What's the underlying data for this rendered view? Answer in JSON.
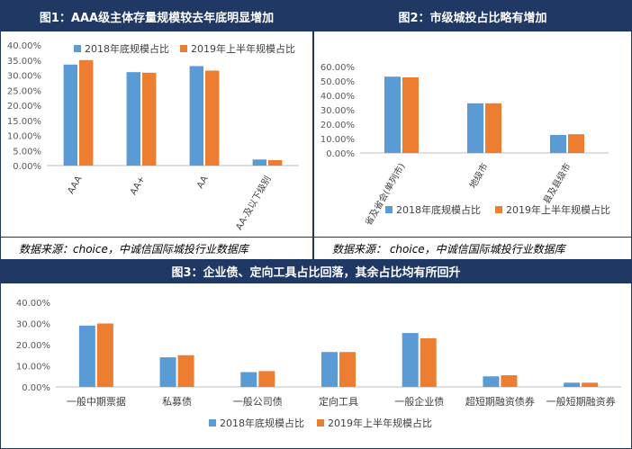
{
  "colors": {
    "series1": "#5b9bd5",
    "series2": "#ed7d31",
    "header": "#1f3864",
    "grid": "#d9d9d9",
    "axis": "#595959"
  },
  "panels": {
    "p1": {
      "title": "图1：AAA级主体存量规模较去年底明显增加",
      "source": "数据来源：choice，中诚信国际城投行业数据库"
    },
    "p2": {
      "title": "图2：市级城投占比略有增加",
      "source": "数据来源： choice，中诚信国际城投行业数据库"
    },
    "p3": {
      "title": "图3：企业债、定向工具占比回落，其余占比均有所回升"
    }
  },
  "chart_data": [
    {
      "type": "bar",
      "title": "图1：AAA级主体存量规模较去年底明显增加",
      "categories": [
        "AAA",
        "AA+",
        "AA",
        "AA-及以下级别"
      ],
      "series": [
        {
          "name": "2018年底规模占比",
          "values": [
            33.5,
            31.0,
            33.0,
            2.0
          ]
        },
        {
          "name": "2019年上半年规模占比",
          "values": [
            35.0,
            30.8,
            31.5,
            1.8
          ]
        }
      ],
      "ylim": [
        0,
        40
      ],
      "yticks": [
        "0.00%",
        "5.00%",
        "10.00%",
        "15.00%",
        "20.00%",
        "25.00%",
        "30.00%",
        "35.00%",
        "40.00%"
      ],
      "legend": "top"
    },
    {
      "type": "bar",
      "title": "图2：市级城投占比略有增加",
      "categories": [
        "省及省会(单列市)",
        "地级市",
        "县及县级市"
      ],
      "series": [
        {
          "name": "2018年底规模占比",
          "values": [
            53.0,
            34.5,
            12.5
          ]
        },
        {
          "name": "2019年上半年规模占比",
          "values": [
            52.5,
            34.5,
            13.0
          ]
        }
      ],
      "ylim": [
        0,
        60
      ],
      "yticks": [
        "0.00%",
        "10.00%",
        "20.00%",
        "30.00%",
        "40.00%",
        "50.00%",
        "60.00%"
      ],
      "legend": "bottom"
    },
    {
      "type": "bar",
      "title": "图3：企业债、定向工具占比回落，其余占比均有所回升",
      "categories": [
        "一般中期票据",
        "私募债",
        "一般公司债",
        "定向工具",
        "一般企业债",
        "超短期融资债券",
        "一般短期融资券"
      ],
      "series": [
        {
          "name": "2018年底规模占比",
          "values": [
            29.0,
            14.0,
            7.0,
            16.5,
            25.5,
            5.0,
            2.0
          ]
        },
        {
          "name": "2019年上半年规模占比",
          "values": [
            30.0,
            15.0,
            7.5,
            16.5,
            23.0,
            5.5,
            2.0
          ]
        }
      ],
      "ylim": [
        0,
        40
      ],
      "yticks": [
        "0.00%",
        "10.00%",
        "20.00%",
        "30.00%",
        "40.00%"
      ],
      "legend": "bottom"
    }
  ]
}
